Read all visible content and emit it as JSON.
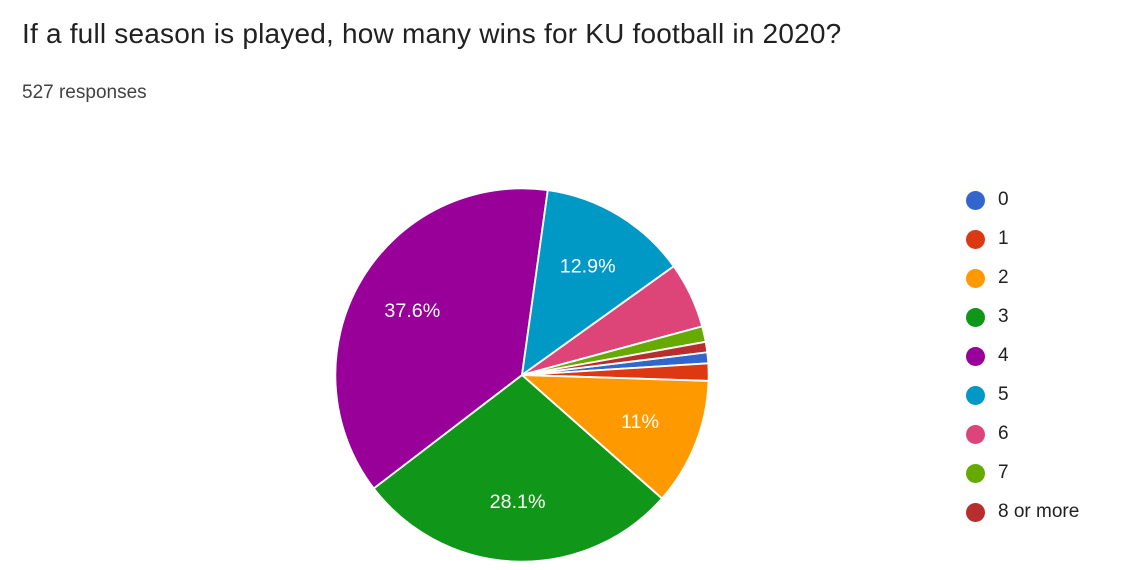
{
  "header": {
    "title": "If a full season is played, how many wins for KU football in 2020?",
    "responses": "527 responses"
  },
  "chart_data": {
    "type": "pie",
    "title": "If a full season is played, how many wins for KU football in 2020?",
    "total_responses": 527,
    "legend_position": "right",
    "start_angle_deg_from_top": 83,
    "categories": [
      "0",
      "1",
      "2",
      "3",
      "4",
      "5",
      "6",
      "7",
      "8 or more"
    ],
    "values_pct": [
      0.95,
      1.5,
      11,
      28.1,
      37.6,
      12.9,
      5.7,
      1.35,
      0.9
    ],
    "slice_labels": [
      "",
      "",
      "11%",
      "28.1%",
      "37.6%",
      "12.9%",
      "",
      "",
      ""
    ],
    "colors": [
      "#3366cc",
      "#dc3912",
      "#ff9900",
      "#109618",
      "#990099",
      "#0099c6",
      "#dd4477",
      "#66aa00",
      "#b82e2e"
    ],
    "label_color": "#ffffff",
    "slice_border_color": "#ffffff"
  }
}
